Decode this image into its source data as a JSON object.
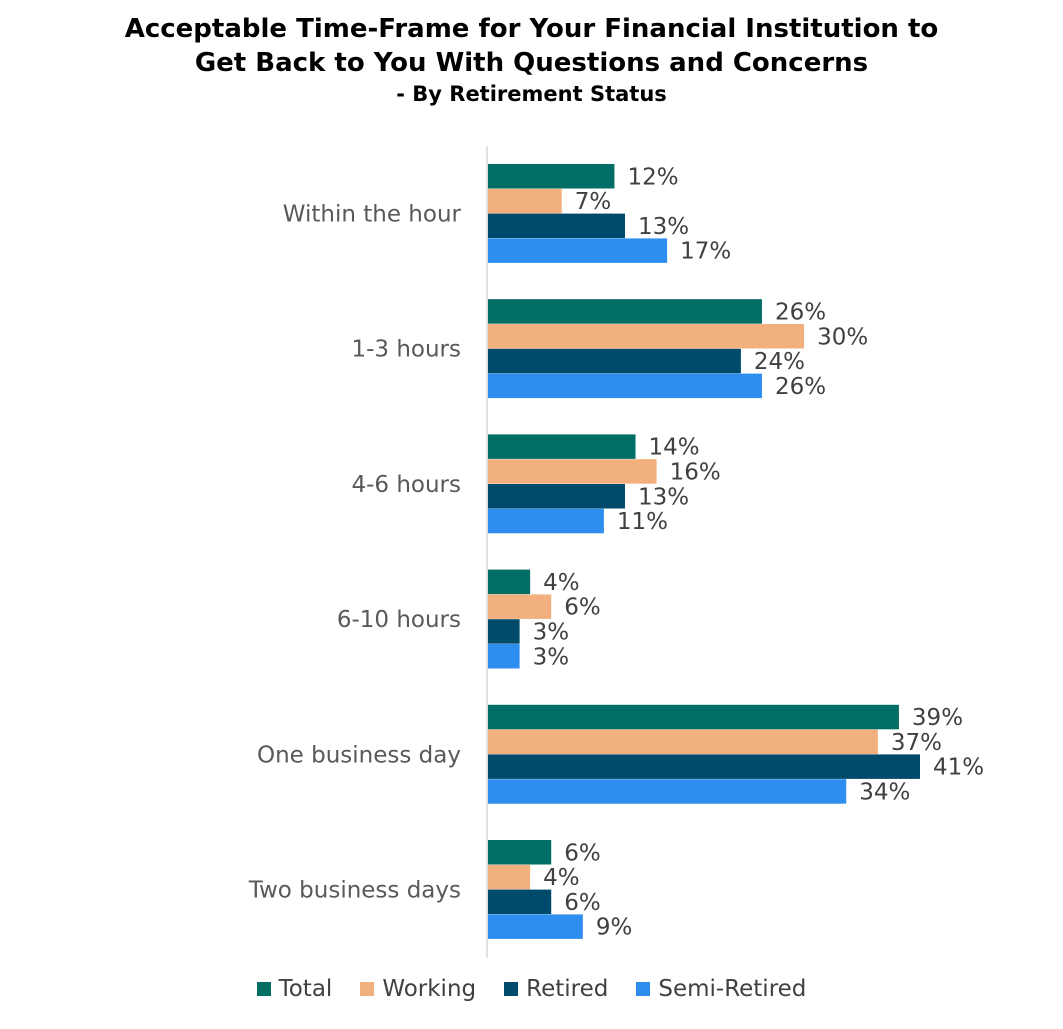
{
  "chart_data": {
    "type": "bar",
    "orientation": "horizontal",
    "title": "Acceptable Time-Frame for Your Financial Institution to Get Back to You With Questions and Concerns",
    "subtitle": "- By Retirement Status",
    "categories": [
      "Within the hour",
      "1-3 hours",
      "4-6 hours",
      "6-10 hours",
      "One business day",
      "Two business days"
    ],
    "series": [
      {
        "name": "Total",
        "color": "#006E65",
        "values": [
          12,
          26,
          14,
          4,
          39,
          6
        ]
      },
      {
        "name": "Working",
        "color": "#F2B07E",
        "values": [
          7,
          30,
          16,
          6,
          37,
          4
        ]
      },
      {
        "name": "Retired",
        "color": "#004B6B",
        "values": [
          13,
          24,
          13,
          3,
          41,
          6
        ]
      },
      {
        "name": "Semi-Retired",
        "color": "#2E8EF0",
        "values": [
          17,
          26,
          11,
          3,
          34,
          9
        ]
      }
    ],
    "value_suffix": "%",
    "xlim": [
      0,
      41
    ],
    "grid": false,
    "legend_position": "bottom"
  }
}
